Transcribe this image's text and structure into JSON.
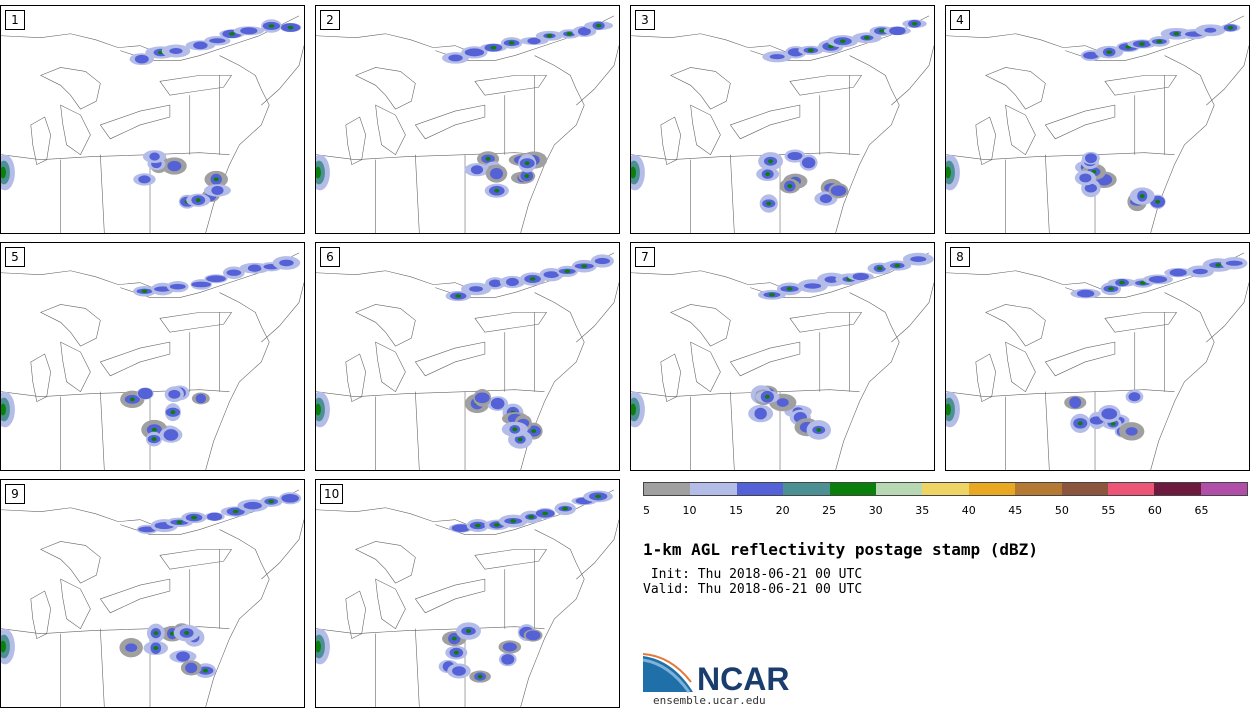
{
  "panels": [
    {
      "label": "1"
    },
    {
      "label": "2"
    },
    {
      "label": "3"
    },
    {
      "label": "4"
    },
    {
      "label": "5"
    },
    {
      "label": "6"
    },
    {
      "label": "7"
    },
    {
      "label": "8"
    },
    {
      "label": "9"
    },
    {
      "label": "10"
    }
  ],
  "colorbar": {
    "ticks": [
      "5",
      "10",
      "15",
      "20",
      "25",
      "30",
      "35",
      "40",
      "45",
      "50",
      "55",
      "60",
      "65"
    ],
    "colors": [
      "#a0a0a0",
      "#b4bce8",
      "#5561d6",
      "#4d9093",
      "#0b7f0b",
      "#b8d8b4",
      "#eed465",
      "#e8a822",
      "#b47932",
      "#8b563d",
      "#ec5478",
      "#6c1b3f",
      "#b14ea8"
    ]
  },
  "title": "1-km AGL reflectivity postage stamp (dBZ)",
  "init_text": " Init: Thu 2018-06-21 00 UTC",
  "valid_text": "Valid: Thu 2018-06-21 00 UTC",
  "logo": {
    "text": "NCAR",
    "url": "ensemble.ucar.edu"
  }
}
